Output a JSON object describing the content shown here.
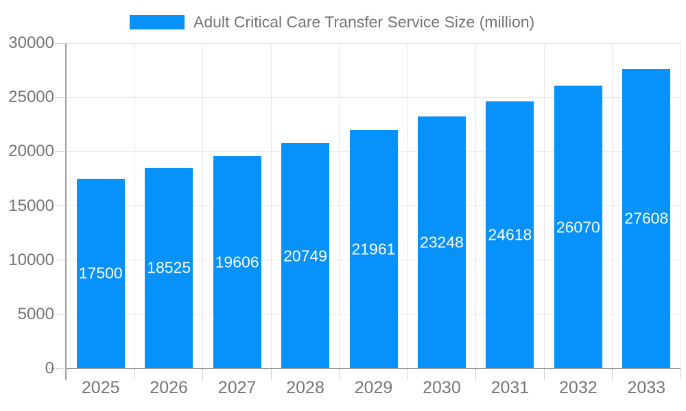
{
  "chart_data": {
    "type": "bar",
    "title": "Adult Critical Care Transfer Service Size (million)",
    "categories": [
      "2025",
      "2026",
      "2027",
      "2028",
      "2029",
      "2030",
      "2031",
      "2032",
      "2033"
    ],
    "values": [
      17500,
      18525,
      19606,
      20749,
      21961,
      23248,
      24618,
      26070,
      27608
    ],
    "xlabel": "",
    "ylabel": "",
    "ylim": [
      0,
      30000
    ],
    "yticks": [
      0,
      5000,
      10000,
      15000,
      20000,
      25000,
      30000
    ],
    "grid": true,
    "legend_position": "top",
    "colors": {
      "bar": "#0691FB",
      "bar_value_text": "#ffffff",
      "axis_text": "#757575",
      "axis_line": "#9e9e9e",
      "gridline": "#e6e6e6"
    }
  }
}
